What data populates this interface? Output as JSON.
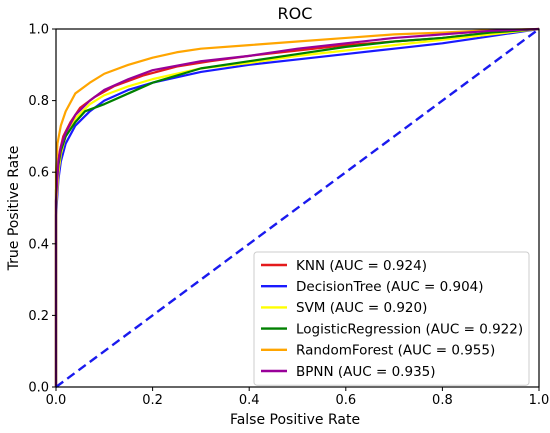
{
  "chart_data": {
    "type": "line",
    "title": "ROC",
    "xlabel": "False Positive Rate",
    "ylabel": "True Positive Rate",
    "xlim": [
      0,
      1
    ],
    "ylim": [
      0,
      1
    ],
    "xticks": [
      "0.0",
      "0.2",
      "0.4",
      "0.6",
      "0.8",
      "1.0"
    ],
    "yticks": [
      "0.0",
      "0.2",
      "0.4",
      "0.6",
      "0.8",
      "1.0"
    ],
    "grid": false,
    "legend_position": "bottom-right",
    "series": [
      {
        "name": "KNN (AUC = 0.924)",
        "color": "#e41a1c",
        "points": [
          [
            0,
            0
          ],
          [
            0,
            0.52
          ],
          [
            0.003,
            0.62
          ],
          [
            0.008,
            0.66
          ],
          [
            0.015,
            0.7
          ],
          [
            0.03,
            0.74
          ],
          [
            0.05,
            0.78
          ],
          [
            0.08,
            0.81
          ],
          [
            0.12,
            0.84
          ],
          [
            0.18,
            0.87
          ],
          [
            0.25,
            0.895
          ],
          [
            0.32,
            0.91
          ],
          [
            0.4,
            0.925
          ],
          [
            0.5,
            0.94
          ],
          [
            0.6,
            0.955
          ],
          [
            0.7,
            0.965
          ],
          [
            0.8,
            0.975
          ],
          [
            0.9,
            0.99
          ],
          [
            1,
            1
          ]
        ]
      },
      {
        "name": "DecisionTree (AUC = 0.904)",
        "color": "#1a1aff",
        "points": [
          [
            0,
            0
          ],
          [
            0,
            0.48
          ],
          [
            0.005,
            0.58
          ],
          [
            0.01,
            0.63
          ],
          [
            0.02,
            0.68
          ],
          [
            0.04,
            0.73
          ],
          [
            0.07,
            0.77
          ],
          [
            0.1,
            0.8
          ],
          [
            0.15,
            0.83
          ],
          [
            0.2,
            0.85
          ],
          [
            0.3,
            0.88
          ],
          [
            0.4,
            0.9
          ],
          [
            0.5,
            0.915
          ],
          [
            0.6,
            0.93
          ],
          [
            0.7,
            0.945
          ],
          [
            0.8,
            0.96
          ],
          [
            0.9,
            0.98
          ],
          [
            1,
            1
          ]
        ]
      },
      {
        "name": "SVM (AUC = 0.920)",
        "color": "#ffff00",
        "points": [
          [
            0,
            0
          ],
          [
            0,
            0.5
          ],
          [
            0.005,
            0.6
          ],
          [
            0.01,
            0.65
          ],
          [
            0.02,
            0.7
          ],
          [
            0.04,
            0.75
          ],
          [
            0.07,
            0.79
          ],
          [
            0.1,
            0.815
          ],
          [
            0.15,
            0.84
          ],
          [
            0.2,
            0.86
          ],
          [
            0.3,
            0.89
          ],
          [
            0.4,
            0.905
          ],
          [
            0.5,
            0.925
          ],
          [
            0.6,
            0.94
          ],
          [
            0.7,
            0.955
          ],
          [
            0.8,
            0.97
          ],
          [
            0.9,
            0.985
          ],
          [
            1,
            1
          ]
        ]
      },
      {
        "name": "LogisticRegression (AUC = 0.922)",
        "color": "#008000",
        "points": [
          [
            0,
            0
          ],
          [
            0,
            0.55
          ],
          [
            0.005,
            0.62
          ],
          [
            0.01,
            0.66
          ],
          [
            0.02,
            0.7
          ],
          [
            0.04,
            0.74
          ],
          [
            0.06,
            0.77
          ],
          [
            0.1,
            0.79
          ],
          [
            0.15,
            0.82
          ],
          [
            0.2,
            0.85
          ],
          [
            0.3,
            0.89
          ],
          [
            0.4,
            0.91
          ],
          [
            0.5,
            0.93
          ],
          [
            0.6,
            0.95
          ],
          [
            0.7,
            0.965
          ],
          [
            0.8,
            0.975
          ],
          [
            0.9,
            0.99
          ],
          [
            1,
            1
          ]
        ]
      },
      {
        "name": "RandomForest (AUC = 0.955)",
        "color": "#ffa500",
        "points": [
          [
            0,
            0
          ],
          [
            0,
            0.6
          ],
          [
            0.003,
            0.68
          ],
          [
            0.01,
            0.73
          ],
          [
            0.02,
            0.77
          ],
          [
            0.04,
            0.82
          ],
          [
            0.07,
            0.85
          ],
          [
            0.1,
            0.875
          ],
          [
            0.15,
            0.9
          ],
          [
            0.2,
            0.92
          ],
          [
            0.25,
            0.935
          ],
          [
            0.3,
            0.945
          ],
          [
            0.4,
            0.955
          ],
          [
            0.5,
            0.965
          ],
          [
            0.6,
            0.975
          ],
          [
            0.7,
            0.985
          ],
          [
            0.8,
            0.99
          ],
          [
            0.9,
            0.997
          ],
          [
            1,
            1
          ]
        ]
      },
      {
        "name": "BPNN (AUC = 0.935)",
        "color": "#990099",
        "points": [
          [
            0,
            0
          ],
          [
            0,
            0.52
          ],
          [
            0.005,
            0.63
          ],
          [
            0.01,
            0.67
          ],
          [
            0.02,
            0.71
          ],
          [
            0.04,
            0.76
          ],
          [
            0.07,
            0.8
          ],
          [
            0.1,
            0.83
          ],
          [
            0.15,
            0.86
          ],
          [
            0.2,
            0.885
          ],
          [
            0.3,
            0.91
          ],
          [
            0.4,
            0.925
          ],
          [
            0.5,
            0.945
          ],
          [
            0.6,
            0.96
          ],
          [
            0.7,
            0.975
          ],
          [
            0.8,
            0.985
          ],
          [
            0.9,
            0.995
          ],
          [
            1,
            1
          ]
        ]
      }
    ],
    "diagonal": {
      "color": "#1a1aee",
      "style": "dashed",
      "points": [
        [
          0,
          0
        ],
        [
          1,
          1
        ]
      ]
    }
  }
}
